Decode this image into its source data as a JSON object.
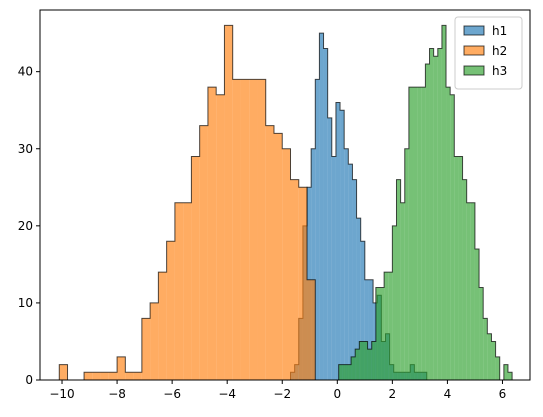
{
  "chart_data": {
    "type": "histogram",
    "title": "",
    "xlabel": "",
    "ylabel": "",
    "xlim": [
      -10.8,
      7.0
    ],
    "ylim": [
      0,
      48
    ],
    "xticks": [
      -10,
      -8,
      -6,
      -4,
      -2,
      0,
      2,
      4,
      6
    ],
    "yticks": [
      0,
      10,
      20,
      30,
      40
    ],
    "grid": false,
    "legend_position": "top-right",
    "series": [
      {
        "name": "h1",
        "color": "#1f77b4",
        "alpha": 0.65,
        "bin_edges": [
          -1.7,
          -1.55,
          -1.4,
          -1.25,
          -1.1,
          -0.95,
          -0.8,
          -0.65,
          -0.5,
          -0.35,
          -0.2,
          -0.05,
          0.1,
          0.25,
          0.4,
          0.55,
          0.7,
          0.85,
          1.0,
          1.15,
          1.3,
          1.45,
          1.6,
          1.75,
          1.9,
          2.05,
          2.2,
          2.35,
          2.5,
          2.65,
          2.8,
          2.95,
          3.1,
          3.25
        ],
        "counts": [
          1,
          2,
          8,
          20,
          25,
          30,
          39,
          45,
          43,
          34,
          29,
          36,
          35,
          30,
          28,
          26,
          21,
          18,
          13,
          13,
          10,
          11,
          5,
          6,
          2,
          1,
          1,
          1,
          1,
          2,
          1,
          1,
          1
        ]
      },
      {
        "name": "h2",
        "color": "#ff7f0e",
        "alpha": 0.65,
        "bin_edges": [
          -10.1,
          -9.8,
          -9.5,
          -9.2,
          -8.9,
          -8.6,
          -8.3,
          -8.0,
          -7.7,
          -7.4,
          -7.1,
          -6.8,
          -6.5,
          -6.2,
          -5.9,
          -5.6,
          -5.3,
          -5.0,
          -4.7,
          -4.4,
          -4.1,
          -3.8,
          -3.5,
          -3.2,
          -2.9,
          -2.6,
          -2.3,
          -2.0,
          -1.7,
          -1.4,
          -1.1,
          -0.8
        ],
        "counts": [
          2,
          0,
          0,
          1,
          1,
          1,
          1,
          3,
          1,
          1,
          8,
          10,
          14,
          18,
          23,
          23,
          29,
          33,
          38,
          37,
          46,
          39,
          39,
          39,
          39,
          33,
          32,
          30,
          26,
          25,
          13
        ]
      },
      {
        "name": "h3",
        "color": "#2ca02c",
        "alpha": 0.65,
        "bin_edges": [
          0.05,
          0.2,
          0.35,
          0.5,
          0.65,
          0.8,
          0.95,
          1.1,
          1.25,
          1.4,
          1.55,
          1.7,
          1.85,
          2.0,
          2.15,
          2.3,
          2.45,
          2.6,
          2.75,
          2.9,
          3.05,
          3.2,
          3.35,
          3.5,
          3.65,
          3.8,
          3.95,
          4.1,
          4.25,
          4.4,
          4.55,
          4.7,
          4.85,
          5.0,
          5.15,
          5.3,
          5.45,
          5.6,
          5.75,
          5.9,
          6.05,
          6.2,
          6.35
        ],
        "counts": [
          2,
          2,
          2,
          3,
          4,
          5,
          5,
          4,
          5,
          12,
          12,
          14,
          14,
          20,
          26,
          23,
          30,
          38,
          38,
          38,
          38,
          41,
          43,
          42,
          43,
          46,
          38,
          37,
          29,
          29,
          26,
          23,
          23,
          17,
          12,
          8,
          6,
          5,
          3,
          0,
          2,
          1
        ]
      }
    ]
  }
}
